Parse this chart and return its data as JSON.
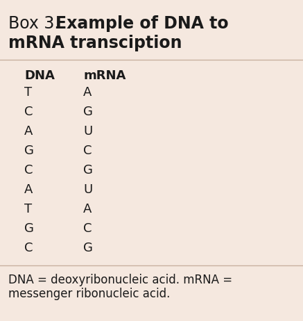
{
  "background_color": "#f5e8df",
  "title_prefix": "Box 3. ",
  "title_bold_line1": "Example of DNA to",
  "title_bold_line2": "mRNA transciption",
  "col_header_dna": "DNA",
  "col_header_mrna": "mRNA",
  "dna": [
    "T",
    "C",
    "A",
    "G",
    "C",
    "A",
    "T",
    "G",
    "C"
  ],
  "mrna": [
    "A",
    "G",
    "U",
    "C",
    "G",
    "U",
    "A",
    "C",
    "G"
  ],
  "footer_line1": "DNA = deoxyribonucleic acid. mRNA =",
  "footer_line2": "messenger ribonucleic acid.",
  "text_color": "#1a1a1a",
  "title_fontsize": 17,
  "header_fontsize": 13,
  "data_fontsize": 13,
  "footer_fontsize": 12,
  "fig_width": 4.37,
  "fig_height": 4.62,
  "dpi": 100
}
